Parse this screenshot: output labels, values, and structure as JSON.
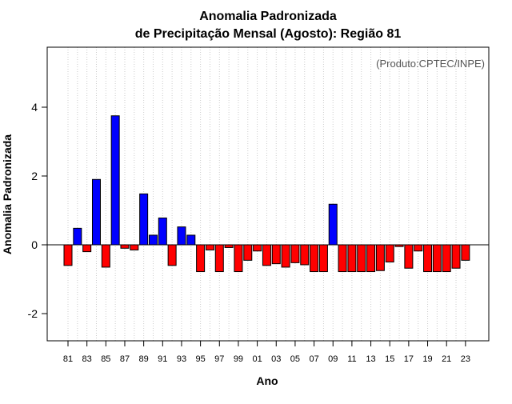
{
  "chart_data": {
    "type": "bar",
    "title_line1": "Anomalia Padronizada",
    "title_line2": "de Precipitação Mensal (Agosto): Região 81",
    "credit": "(Produto:CPTEC/INPE)",
    "xlabel": "Ano",
    "ylabel": "Anomalia Padronizada",
    "ylim": [
      -2.8,
      5.7
    ],
    "yticks": [
      -2,
      0,
      2,
      4
    ],
    "grid": "vertical dotted",
    "positive_color": "#0000ff",
    "negative_color": "#ff0000",
    "tick_labels": [
      "81",
      "83",
      "85",
      "87",
      "89",
      "91",
      "93",
      "95",
      "97",
      "99",
      "01",
      "03",
      "05",
      "07",
      "09",
      "11",
      "13",
      "15",
      "17",
      "19",
      "21",
      "23"
    ],
    "categories": [
      "1981",
      "1982",
      "1983",
      "1984",
      "1985",
      "1986",
      "1987",
      "1988",
      "1989",
      "1990",
      "1991",
      "1992",
      "1993",
      "1994",
      "1995",
      "1996",
      "1997",
      "1998",
      "1999",
      "2000",
      "2001",
      "2002",
      "2003",
      "2004",
      "2005",
      "2006",
      "2007",
      "2008",
      "2009",
      "2010",
      "2011",
      "2012",
      "2013",
      "2014",
      "2015",
      "2016",
      "2017",
      "2018",
      "2019",
      "2020",
      "2021",
      "2022",
      "2023"
    ],
    "values": [
      -0.6,
      0.48,
      -0.2,
      1.9,
      -0.65,
      3.75,
      -0.1,
      -0.15,
      1.48,
      0.28,
      0.78,
      -0.6,
      0.52,
      0.28,
      -0.78,
      -0.15,
      -0.78,
      -0.08,
      -0.78,
      -0.45,
      -0.18,
      -0.6,
      -0.55,
      -0.65,
      -0.52,
      -0.58,
      -0.78,
      -0.78,
      1.18,
      -0.78,
      -0.78,
      -0.78,
      -0.78,
      -0.75,
      -0.5,
      -0.05,
      -0.68,
      -0.18,
      -0.78,
      -0.78,
      -0.78,
      -0.68,
      -0.45
    ]
  }
}
